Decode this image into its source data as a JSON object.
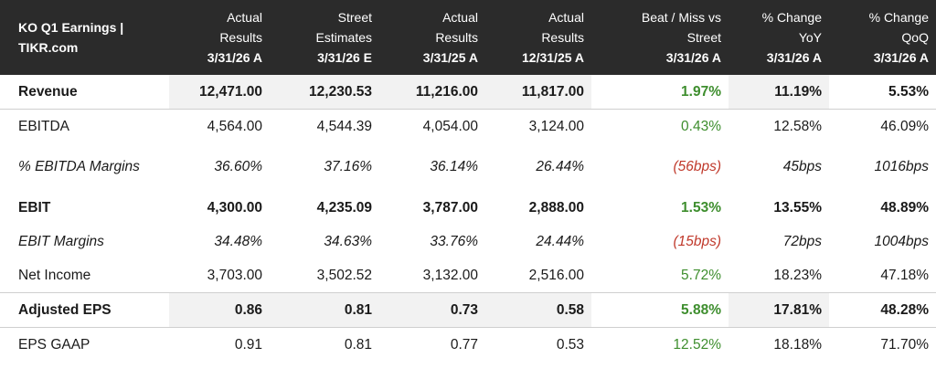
{
  "table": {
    "headers": [
      [
        "KO Q1 Earnings |",
        "TIKR.com"
      ],
      [
        "Actual",
        "Results",
        "3/31/26 A"
      ],
      [
        "Street",
        "Estimates",
        "3/31/26 E"
      ],
      [
        "Actual",
        "Results",
        "3/31/25 A"
      ],
      [
        "Actual",
        "Results",
        "12/31/25 A"
      ],
      [
        "Beat / Miss vs",
        "Street",
        "3/31/26 A"
      ],
      [
        "% Change",
        "YoY",
        "3/31/26 A"
      ],
      [
        "% Change",
        "QoQ",
        "3/31/26 A"
      ]
    ],
    "rows": [
      {
        "label": "Revenue",
        "cells": [
          "12,471.00",
          "12,230.53",
          "11,216.00",
          "11,817.00",
          "1.97%",
          "11.19%",
          "5.53%"
        ]
      },
      {
        "label": "EBITDA",
        "cells": [
          "4,564.00",
          "4,544.39",
          "4,054.00",
          "3,124.00",
          "0.43%",
          "12.58%",
          "46.09%"
        ]
      },
      {
        "label": "% EBITDA Margins",
        "cells": [
          "36.60%",
          "37.16%",
          "36.14%",
          "26.44%",
          "(56bps)",
          "45bps",
          "1016bps"
        ]
      },
      {
        "label": "EBIT",
        "cells": [
          "4,300.00",
          "4,235.09",
          "3,787.00",
          "2,888.00",
          "1.53%",
          "13.55%",
          "48.89%"
        ]
      },
      {
        "label": "EBIT Margins",
        "cells": [
          "34.48%",
          "34.63%",
          "33.76%",
          "24.44%",
          "(15bps)",
          "72bps",
          "1004bps"
        ]
      },
      {
        "label": "Net Income",
        "cells": [
          "3,703.00",
          "3,502.52",
          "3,132.00",
          "2,516.00",
          "5.72%",
          "18.23%",
          "47.18%"
        ]
      },
      {
        "label": "Adjusted EPS",
        "cells": [
          "0.86",
          "0.81",
          "0.73",
          "0.58",
          "5.88%",
          "17.81%",
          "48.28%"
        ]
      },
      {
        "label": "EPS GAAP",
        "cells": [
          "0.91",
          "0.81",
          "0.77",
          "0.53",
          "12.52%",
          "18.18%",
          "71.70%"
        ]
      }
    ],
    "colors": {
      "positive": "#3e8e2e",
      "negative": "#c0392b",
      "header_bg": "#2b2b2b",
      "shade_bg": "#f2f2f2"
    }
  }
}
